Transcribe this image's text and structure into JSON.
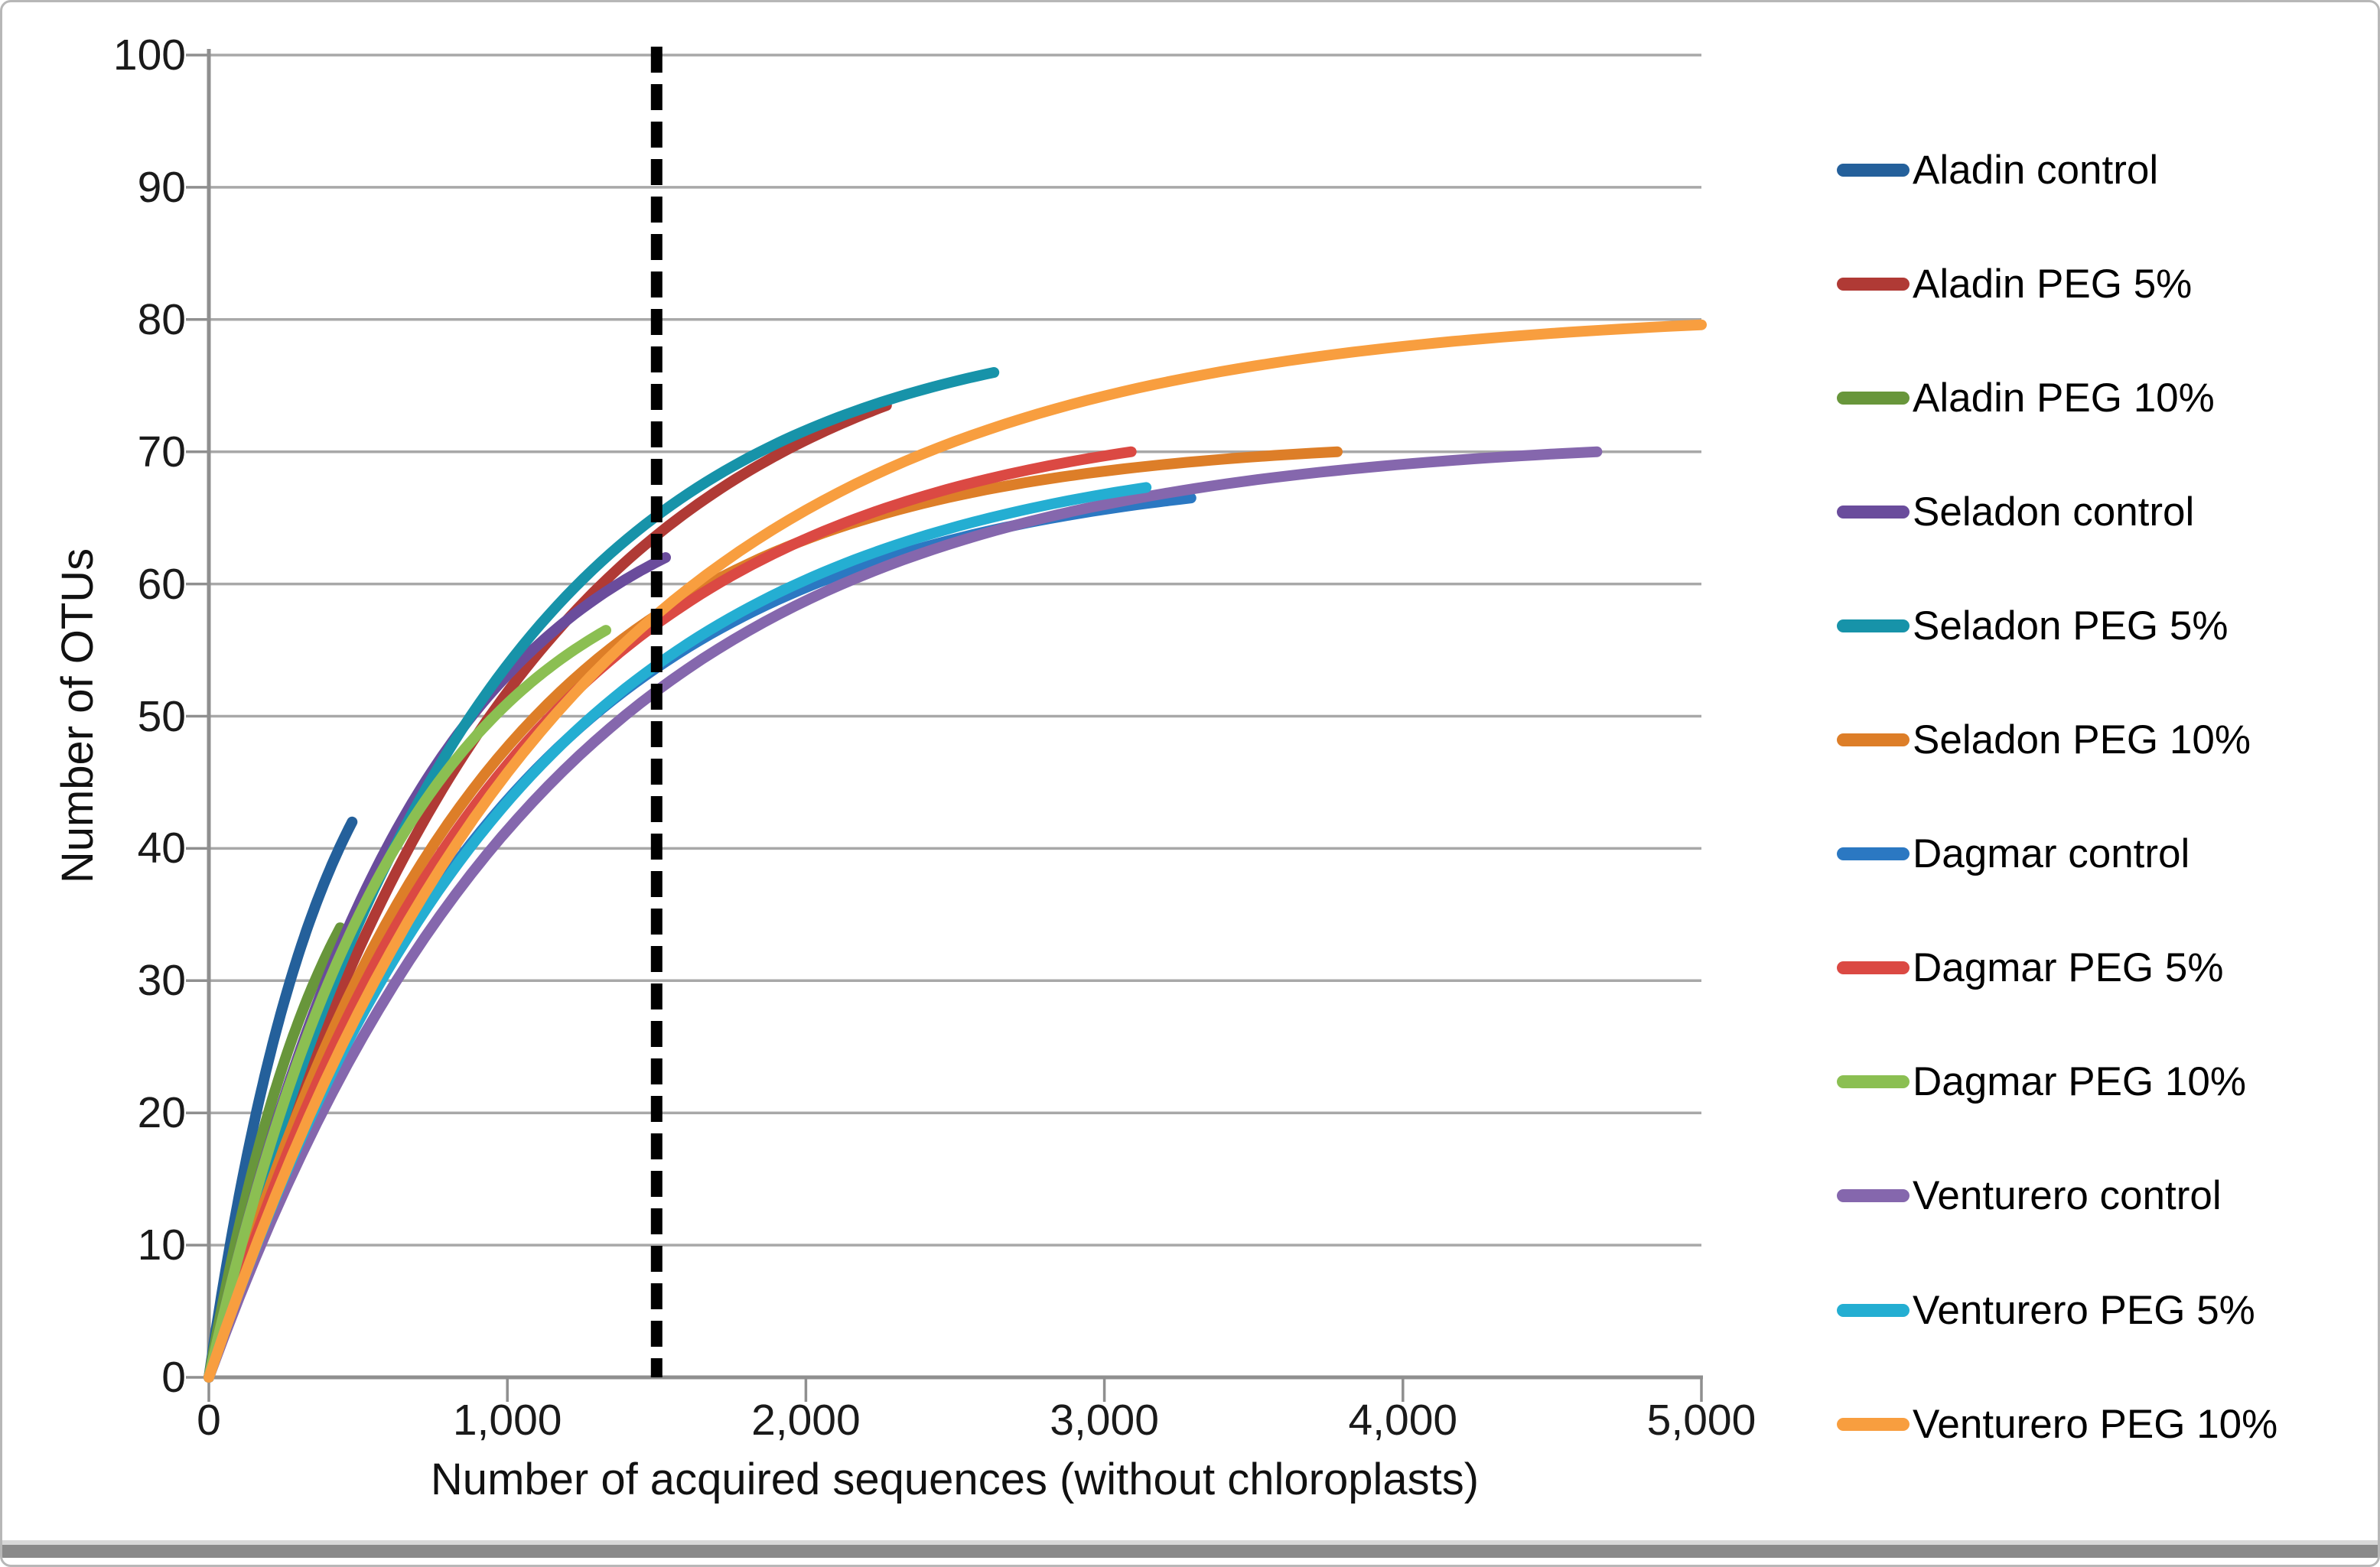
{
  "chart_data": {
    "type": "line",
    "title": "",
    "xlabel": "Number of acquired sequences (without chloroplasts)",
    "ylabel": "Number of OTUs",
    "xlim": [
      0,
      5000
    ],
    "ylim": [
      0,
      100
    ],
    "x_ticks": [
      {
        "value": 0,
        "label": "0"
      },
      {
        "value": 1000,
        "label": "1,000"
      },
      {
        "value": 2000,
        "label": "2,000"
      },
      {
        "value": 3000,
        "label": "3,000"
      },
      {
        "value": 4000,
        "label": "4,000"
      },
      {
        "value": 5000,
        "label": "5,000"
      }
    ],
    "y_ticks": [
      {
        "value": 0,
        "label": "0"
      },
      {
        "value": 10,
        "label": "10"
      },
      {
        "value": 20,
        "label": "20"
      },
      {
        "value": 30,
        "label": "30"
      },
      {
        "value": 40,
        "label": "40"
      },
      {
        "value": 50,
        "label": "50"
      },
      {
        "value": 60,
        "label": "60"
      },
      {
        "value": 70,
        "label": "70"
      },
      {
        "value": 80,
        "label": "80"
      },
      {
        "value": 90,
        "label": "90"
      },
      {
        "value": 100,
        "label": "100"
      }
    ],
    "grid": "horizontal",
    "gridline_color": "#a8a8a8",
    "axis_color": "#8f8f8f",
    "legend_position": "right",
    "cutoff_line": {
      "x": 1500,
      "style": "dashed",
      "color": "#000000"
    },
    "curve_model": "y = A*(1-exp(-x/tau)) with A = y_end/(1-exp(-x_end/tau)); rarefaction curves start at (0,0)",
    "series": [
      {
        "name": "Aladin control",
        "color": "#24609B",
        "x_end": 480,
        "y_end": 42.0,
        "tau": 380,
        "points": [
          [
            0,
            0
          ],
          [
            120,
            16
          ],
          [
            240,
            27
          ],
          [
            360,
            36
          ],
          [
            480,
            42
          ]
        ]
      },
      {
        "name": "Aladin PEG 5%",
        "color": "#B03A35",
        "x_end": 2270,
        "y_end": 73.5,
        "tau": 1000,
        "points": [
          [
            0,
            0
          ],
          [
            568,
            36
          ],
          [
            1135,
            56
          ],
          [
            1703,
            67
          ],
          [
            2270,
            73.5
          ]
        ]
      },
      {
        "name": "Aladin PEG 10%",
        "color": "#68963B",
        "x_end": 440,
        "y_end": 34.0,
        "tau": 400,
        "points": [
          [
            0,
            0
          ],
          [
            110,
            12
          ],
          [
            220,
            22
          ],
          [
            330,
            29
          ],
          [
            440,
            34
          ]
        ]
      },
      {
        "name": "Seladon control",
        "color": "#6A4C9C",
        "x_end": 1530,
        "y_end": 62.0,
        "tau": 700,
        "points": [
          [
            0,
            0
          ],
          [
            383,
            29
          ],
          [
            765,
            46
          ],
          [
            1148,
            56
          ],
          [
            1530,
            62
          ]
        ]
      },
      {
        "name": "Seladon PEG 5%",
        "color": "#1793A9",
        "x_end": 2630,
        "y_end": 76.0,
        "tau": 900,
        "points": [
          [
            0,
            0
          ],
          [
            658,
            42
          ],
          [
            1315,
            62
          ],
          [
            1973,
            71
          ],
          [
            2630,
            76
          ]
        ]
      },
      {
        "name": "Seladon PEG 10%",
        "color": "#DD7E28",
        "x_end": 3780,
        "y_end": 70.0,
        "tau": 900,
        "points": [
          [
            0,
            0
          ],
          [
            945,
            46
          ],
          [
            1890,
            62
          ],
          [
            2835,
            68
          ],
          [
            3780,
            70
          ]
        ]
      },
      {
        "name": "Dagmar control",
        "color": "#2B78C2",
        "x_end": 3290,
        "y_end": 66.5,
        "tau": 1000,
        "points": [
          [
            0,
            0
          ],
          [
            823,
            39
          ],
          [
            1645,
            56
          ],
          [
            2468,
            63
          ],
          [
            3290,
            66.5
          ]
        ]
      },
      {
        "name": "Dagmar PEG 5%",
        "color": "#DB4943",
        "x_end": 3090,
        "y_end": 70.0,
        "tau": 1000,
        "points": [
          [
            0,
            0
          ],
          [
            773,
            40
          ],
          [
            1545,
            58
          ],
          [
            2318,
            66
          ],
          [
            3090,
            70
          ]
        ]
      },
      {
        "name": "Dagmar PEG 10%",
        "color": "#8BBF52",
        "x_end": 1330,
        "y_end": 56.5,
        "tau": 650,
        "points": [
          [
            0,
            0
          ],
          [
            333,
            26
          ],
          [
            665,
            42
          ],
          [
            998,
            51
          ],
          [
            1330,
            56.5
          ]
        ]
      },
      {
        "name": "Venturero control",
        "color": "#8567AD",
        "x_end": 4650,
        "y_end": 70.0,
        "tau": 1150,
        "points": [
          [
            0,
            0
          ],
          [
            1163,
            45
          ],
          [
            2325,
            62
          ],
          [
            3488,
            68
          ],
          [
            4650,
            70
          ]
        ]
      },
      {
        "name": "Venturero PEG 5%",
        "color": "#24AED2",
        "x_end": 3140,
        "y_end": 67.3,
        "tau": 1050,
        "points": [
          [
            0,
            0
          ],
          [
            785,
            37
          ],
          [
            1570,
            55
          ],
          [
            2355,
            63
          ],
          [
            3140,
            67.3
          ]
        ]
      },
      {
        "name": "Venturero PEG 10%",
        "color": "#F89E3F",
        "x_end": 5000,
        "y_end": 79.6,
        "tau": 1200,
        "points": [
          [
            0,
            0
          ],
          [
            1250,
            52
          ],
          [
            2500,
            71
          ],
          [
            3750,
            77
          ],
          [
            5000,
            79.6
          ]
        ]
      }
    ]
  },
  "colors": {
    "background": "#ffffff",
    "frame_border": "#b7b7b7",
    "bottom_bar_light": "#d8d8d8",
    "bottom_bar_dark": "#8a8a8a",
    "tick_label": "#1a1a1a"
  }
}
